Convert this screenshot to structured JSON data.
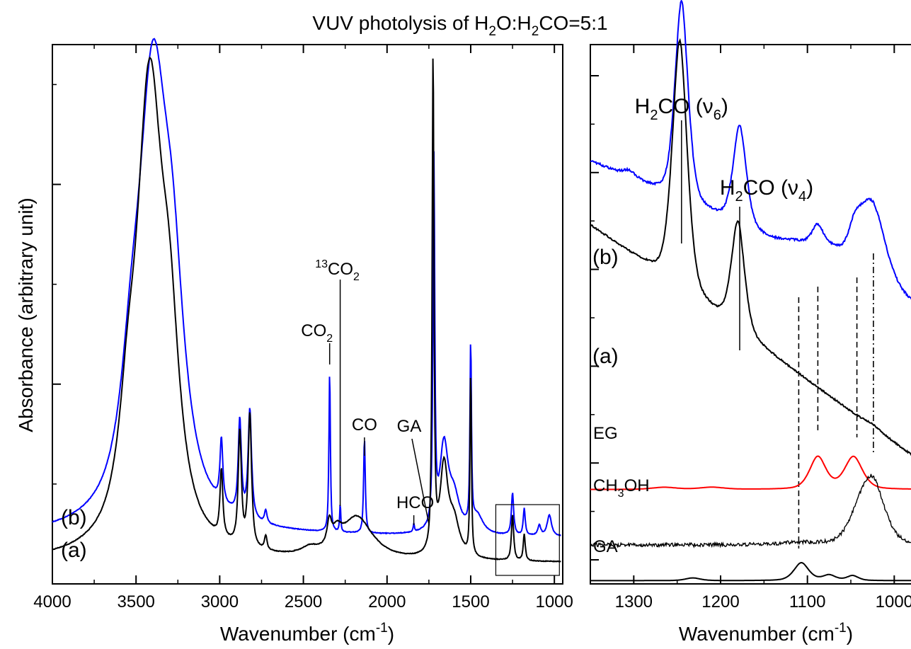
{
  "title": {
    "pre": "VUV photolysis of H",
    "s1": "2",
    "mid": "O:H",
    "s2": "2",
    "post": "CO=5:1"
  },
  "chart_data": [
    {
      "panel": "left",
      "type": "line",
      "xlabel": {
        "text": "Wavenumber (cm",
        "sup": "-1",
        "close": ")"
      },
      "ylabel": "Absorbance (arbitrary unit)",
      "xlim": [
        4000,
        950
      ],
      "x_reversed": true,
      "x_ticks": [
        "4000",
        "3500",
        "3000",
        "2500",
        "2000",
        "1500",
        "1000"
      ],
      "x_tick_values": [
        4000,
        3500,
        3000,
        2500,
        2000,
        1500,
        1000
      ],
      "y_tick_labels": "none",
      "grid": false,
      "inset_box": {
        "x_range": [
          1350,
          970
        ],
        "note": "region magnified in right panel"
      },
      "series": [
        {
          "name": "(b)",
          "color": "#0000ff",
          "baseline": 0.36,
          "peaks": [
            [
              3400,
              6.2,
              110
            ],
            [
              3280,
              2.2,
              80
            ],
            [
              3530,
              1.0,
              70
            ],
            [
              2990,
              0.9,
              10
            ],
            [
              2880,
              1.35,
              11
            ],
            [
              2820,
              1.55,
              12
            ],
            [
              2725,
              0.18,
              9
            ],
            [
              2343,
              2.3,
              5
            ],
            [
              2280,
              0.4,
              4
            ],
            [
              2135,
              1.35,
              6
            ],
            [
              1840,
              0.12,
              4
            ],
            [
              1720,
              5.2,
              6
            ],
            [
              1660,
              1.2,
              30
            ],
            [
              1600,
              0.5,
              40
            ],
            [
              1500,
              2.6,
              5
            ],
            [
              1460,
              0.25,
              40
            ],
            [
              1250,
              0.6,
              8
            ],
            [
              1180,
              0.38,
              7
            ],
            [
              1090,
              0.15,
              10
            ],
            [
              1030,
              0.3,
              15
            ]
          ]
        },
        {
          "name": "(a)",
          "color": "#000000",
          "baseline": 0.0,
          "peaks": [
            [
              3420,
              6.5,
              95
            ],
            [
              3300,
              2.1,
              70
            ],
            [
              3550,
              1.0,
              60
            ],
            [
              2990,
              0.95,
              10
            ],
            [
              2880,
              1.6,
              11
            ],
            [
              2820,
              1.9,
              12
            ],
            [
              2725,
              0.2,
              9
            ],
            [
              2345,
              0.33,
              15
            ],
            [
              2300,
              0.22,
              35
            ],
            [
              2180,
              0.6,
              110
            ],
            [
              2460,
              0.1,
              60
            ],
            [
              1725,
              7.1,
              6
            ],
            [
              1660,
              1.25,
              28
            ],
            [
              1600,
              0.5,
              40
            ],
            [
              1500,
              2.6,
              5
            ],
            [
              1250,
              0.65,
              8
            ],
            [
              1180,
              0.38,
              7
            ]
          ]
        }
      ],
      "ylim": [
        -0.3,
        7.4
      ],
      "annotations": [
        {
          "label": "CO",
          "sub": "2",
          "x": 2343
        },
        {
          "label": "CO",
          "pre": "13",
          "sub": "2",
          "x": 2280
        },
        {
          "label": "CO",
          "x": 2135
        },
        {
          "label": "HCO",
          "x": 1840
        },
        {
          "label": "GA",
          "x": 1740
        }
      ],
      "curve_labels": [
        "(b)",
        "(a)"
      ]
    },
    {
      "panel": "right",
      "type": "line",
      "xlabel": {
        "text": "Wavenumber (cm",
        "sup": "-1",
        "close": ")"
      },
      "xlim": [
        1350,
        975
      ],
      "x_reversed": true,
      "x_ticks": [
        "1300",
        "1200",
        "1100",
        "1000"
      ],
      "x_tick_values": [
        1300,
        1200,
        1100,
        1000
      ],
      "y_tick_labels": "none",
      "grid": false,
      "ylim": [
        0,
        10
      ],
      "series": [
        {
          "name": "(b)",
          "color": "#0000ff",
          "offset": 5.32,
          "slope": 0.0072,
          "noise": 0.02,
          "peaks": [
            [
              1245,
              3.7,
              8
            ],
            [
              1178,
              1.85,
              8
            ],
            [
              1305,
              0.12,
              8
            ],
            [
              1110,
              0.18,
              18
            ],
            [
              1088,
              0.52,
              8
            ],
            [
              1070,
              0.25,
              10
            ],
            [
              1025,
              1.48,
              16
            ],
            [
              1045,
              0.6,
              10
            ]
          ]
        },
        {
          "name": "(a)",
          "color": "#000000",
          "offset": 2.62,
          "slope": 0.0115,
          "noise": 0.015,
          "peaks": [
            [
              1247,
              4.6,
              9
            ],
            [
              1180,
              2.0,
              8
            ],
            [
              1025,
              0.05,
              10
            ]
          ]
        },
        {
          "name": "EG",
          "color": "#ff0000",
          "offset": 1.75,
          "slope": 0.0,
          "noise": 0.0,
          "peaks": [
            [
              1088,
              0.6,
              10
            ],
            [
              1047,
              0.6,
              11
            ],
            [
              1265,
              0.04,
              15
            ],
            [
              1210,
              0.04,
              15
            ]
          ]
        },
        {
          "name": "CH3OH",
          "label_main": "CH",
          "label_sub": "3",
          "label_end": "OH",
          "color": "#000000",
          "offset": 0.72,
          "slope": 0.0,
          "noise": 0.035,
          "peaks": [
            [
              1024,
              1.05,
              14
            ],
            [
              1040,
              0.45,
              14
            ],
            [
              1110,
              0.04,
              20
            ]
          ]
        },
        {
          "name": "GA",
          "color": "#000000",
          "offset": 0.06,
          "slope": 0.0,
          "noise": 0.0,
          "peaks": [
            [
              1107,
              0.33,
              9
            ],
            [
              1232,
              0.05,
              9
            ],
            [
              1075,
              0.1,
              8
            ],
            [
              1048,
              0.09,
              7
            ]
          ]
        }
      ],
      "annotations": [
        {
          "label": "H",
          "sub": "2",
          "mid": "CO (ν",
          "sub2": "6",
          "end": ")",
          "x": 1245
        },
        {
          "label": "H",
          "sub": "2",
          "mid": "CO (ν",
          "sub2": "4",
          "end": ")",
          "x": 1178
        }
      ],
      "dashed_markers": [
        1110,
        1088,
        1043,
        1024
      ]
    }
  ]
}
